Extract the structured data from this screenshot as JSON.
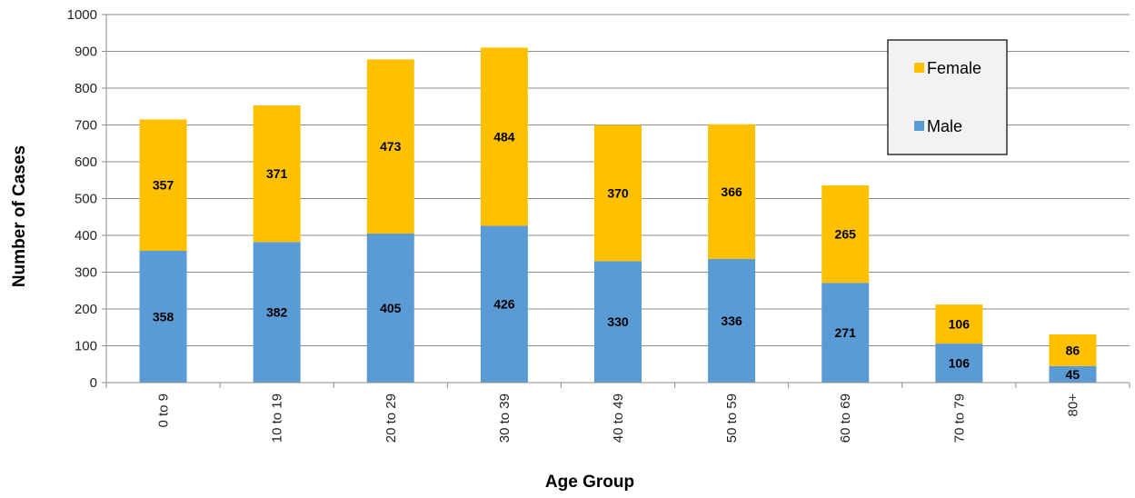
{
  "chart_data": {
    "type": "bar",
    "stacked": true,
    "categories": [
      "0 to 9",
      "10 to 19",
      "20 to 29",
      "30 to 39",
      "40 to 49",
      "50 to 59",
      "60 to 69",
      "70 to 79",
      "80+"
    ],
    "series": [
      {
        "name": "Male",
        "color": "#5B9BD5",
        "values": [
          358,
          382,
          405,
          426,
          330,
          336,
          271,
          106,
          45
        ]
      },
      {
        "name": "Female",
        "color": "#FFC000",
        "values": [
          357,
          371,
          473,
          484,
          370,
          366,
          265,
          106,
          86
        ]
      }
    ],
    "xlabel": "Age Group",
    "ylabel": "Number of Cases",
    "ylim": [
      0,
      1000
    ],
    "yticks": [
      0,
      100,
      200,
      300,
      400,
      500,
      600,
      700,
      800,
      900,
      1000
    ],
    "grid": true,
    "legend": {
      "placement": "top-right",
      "order": [
        "Female",
        "Male"
      ]
    }
  }
}
